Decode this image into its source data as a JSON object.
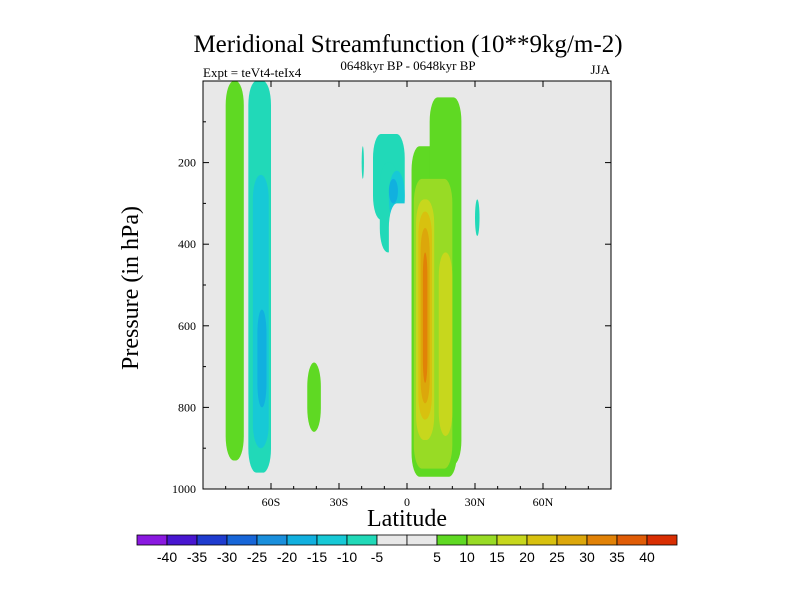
{
  "chart_data": {
    "type": "heatmap",
    "title": "Meridional Streamfunction (10**9kg/m-2)",
    "left_string": "Expt = teVt4-teIx4",
    "center_string": "0648kyr BP - 0648kyr BP",
    "right_string": "JJA",
    "xlabel": "Latitude",
    "ylabel": "Pressure (in hPa)",
    "xlim": [
      -90,
      90
    ],
    "ylim": [
      1000,
      0
    ],
    "y_reversed": true,
    "x_ticks": [
      {
        "value": -60,
        "label": "60S"
      },
      {
        "value": -30,
        "label": "30S"
      },
      {
        "value": 0,
        "label": "0"
      },
      {
        "value": 30,
        "label": "30N"
      },
      {
        "value": 60,
        "label": "60N"
      }
    ],
    "y_ticks": [
      {
        "value": 200,
        "label": "200"
      },
      {
        "value": 400,
        "label": "400"
      },
      {
        "value": 600,
        "label": "600"
      },
      {
        "value": 800,
        "label": "800"
      },
      {
        "value": 1000,
        "label": "1000"
      }
    ],
    "grid": false,
    "background_color": "#e8e8e8",
    "colorbar": {
      "placement": "bottom",
      "colors": [
        "#8a19e0",
        "#4816d0",
        "#1f3ccf",
        "#1766d8",
        "#1a8fdc",
        "#11b0df",
        "#17c9d6",
        "#21d9b8",
        "#e8e8e8",
        "#e8e8e8",
        "#5fd923",
        "#98db25",
        "#c7d71d",
        "#d8c10f",
        "#dca70b",
        "#e18207",
        "#e05c06",
        "#d92e02"
      ],
      "labels": [
        "-40",
        "-35",
        "-30",
        "-25",
        "-20",
        "-15",
        "-10",
        "-5",
        "5",
        "10",
        "15",
        "20",
        "25",
        "30",
        "35",
        "40"
      ]
    },
    "cells": [
      {
        "lat": [
          -80,
          -72
        ],
        "p": [
          0,
          930
        ],
        "value": 7
      },
      {
        "lat": [
          -70,
          -60
        ],
        "p": [
          0,
          960
        ],
        "value": -7
      },
      {
        "lat": [
          -68,
          -61
        ],
        "p": [
          230,
          900
        ],
        "value": -13
      },
      {
        "lat": [
          -66,
          -62
        ],
        "p": [
          560,
          800
        ],
        "value": -18
      },
      {
        "lat": [
          -44,
          -38
        ],
        "p": [
          690,
          860
        ],
        "value": 7
      },
      {
        "lat": [
          -20,
          -19
        ],
        "p": [
          160,
          240
        ],
        "value": -7
      },
      {
        "lat": [
          -15,
          -1
        ],
        "p": [
          130,
          340
        ],
        "value": -7
      },
      {
        "lat": [
          -12,
          -4
        ],
        "p": [
          200,
          420
        ],
        "value": -7
      },
      {
        "lat": [
          -8,
          -1
        ],
        "p": [
          220,
          350
        ],
        "value": -14
      },
      {
        "lat": [
          -8,
          -4
        ],
        "p": [
          240,
          300
        ],
        "value": -20
      },
      {
        "lat": [
          -8,
          3
        ],
        "p": [
          300,
          960
        ],
        "value": -2
      },
      {
        "lat": [
          2,
          22
        ],
        "p": [
          160,
          970
        ],
        "value": 7
      },
      {
        "lat": [
          10,
          24
        ],
        "p": [
          40,
          940
        ],
        "value": 7
      },
      {
        "lat": [
          3,
          20
        ],
        "p": [
          240,
          950
        ],
        "value": 12
      },
      {
        "lat": [
          4,
          12
        ],
        "p": [
          290,
          880
        ],
        "value": 17
      },
      {
        "lat": [
          14,
          20
        ],
        "p": [
          420,
          870
        ],
        "value": 19
      },
      {
        "lat": [
          5,
          11
        ],
        "p": [
          320,
          830
        ],
        "value": 23
      },
      {
        "lat": [
          6,
          10
        ],
        "p": [
          360,
          790
        ],
        "value": 27
      },
      {
        "lat": [
          7,
          9
        ],
        "p": [
          420,
          740
        ],
        "value": 31
      },
      {
        "lat": [
          30,
          32
        ],
        "p": [
          290,
          380
        ],
        "value": -7
      }
    ]
  }
}
